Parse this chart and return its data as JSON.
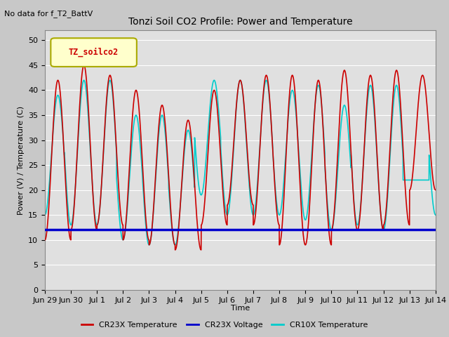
{
  "title": "Tonzi Soil CO2 Profile: Power and Temperature",
  "subtitle": "No data for f_T2_BattV",
  "ylabel": "Power (V) / Temperature (C)",
  "xlabel": "Time",
  "ylim": [
    0,
    52
  ],
  "yticks": [
    0,
    5,
    10,
    15,
    20,
    25,
    30,
    35,
    40,
    45,
    50
  ],
  "fig_bg_color": "#c8c8c8",
  "plot_bg_color": "#e0e0e0",
  "legend_label": "TZ_soilco2",
  "legend_box_color": "#ffffcc",
  "legend_border_color": "#aaaa00",
  "cr23x_temp_color": "#cc0000",
  "cr23x_volt_color": "#0000cc",
  "cr10x_temp_color": "#00cccc",
  "voltage_value": 12.0,
  "cr23x_peaks": [
    42,
    45,
    43,
    40,
    37,
    34,
    40,
    42,
    43,
    43,
    42,
    44,
    43,
    44,
    43
  ],
  "cr23x_troughs": [
    10,
    12,
    13,
    10,
    9,
    8,
    13,
    17,
    13,
    9,
    9,
    12,
    12,
    13,
    20
  ],
  "cr10x_peaks": [
    39,
    42,
    42,
    35,
    35,
    32,
    42,
    42,
    42,
    40,
    41,
    37,
    41,
    41,
    22
  ],
  "cr10x_troughs": [
    15,
    13,
    13,
    10,
    9,
    9,
    19,
    15,
    15,
    15,
    14,
    12,
    13,
    12,
    22
  ],
  "cr10x_phase_lead": 0.25,
  "days": 15,
  "pts_per_day": 400,
  "xtick_labels": [
    "Jun 29",
    "Jun 30",
    "Jul 1",
    "Jul 2",
    "Jul 3",
    "Jul 4",
    "Jul 5",
    "Jul 6",
    "Jul 7",
    "Jul 8",
    "Jul 9",
    "Jul 10",
    "Jul 11",
    "Jul 12",
    "Jul 13",
    "Jul 14"
  ]
}
